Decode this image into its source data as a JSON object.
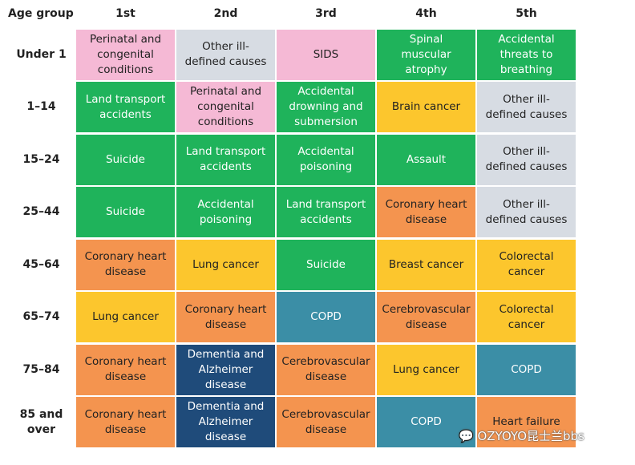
{
  "table": {
    "corner": "Age group",
    "columns": [
      "1st",
      "2nd",
      "3rd",
      "4th",
      "5th"
    ],
    "rows": [
      {
        "label": "Under 1",
        "cells": [
          {
            "text": "Perinatal and congenital conditions",
            "color": "#f5b9d5"
          },
          {
            "text": "Other ill-defined causes",
            "color": "#d7dce3"
          },
          {
            "text": "SIDS",
            "color": "#f5b9d5"
          },
          {
            "text": "Spinal muscular atrophy",
            "color": "#1fb35b"
          },
          {
            "text": "Accidental threats to breathing",
            "color": "#1fb35b"
          }
        ]
      },
      {
        "label": "1–14",
        "cells": [
          {
            "text": "Land transport accidents",
            "color": "#1fb35b"
          },
          {
            "text": "Perinatal and congenital conditions",
            "color": "#f5b9d5"
          },
          {
            "text": "Accidental drowning and submersion",
            "color": "#1fb35b"
          },
          {
            "text": "Brain cancer",
            "color": "#fcc62d"
          },
          {
            "text": "Other ill-defined causes",
            "color": "#d7dce3"
          }
        ]
      },
      {
        "label": "15–24",
        "cells": [
          {
            "text": "Suicide",
            "color": "#1fb35b"
          },
          {
            "text": "Land transport accidents",
            "color": "#1fb35b"
          },
          {
            "text": "Accidental poisoning",
            "color": "#1fb35b"
          },
          {
            "text": "Assault",
            "color": "#1fb35b"
          },
          {
            "text": "Other ill-defined causes",
            "color": "#d7dce3"
          }
        ]
      },
      {
        "label": "25–44",
        "cells": [
          {
            "text": "Suicide",
            "color": "#1fb35b"
          },
          {
            "text": "Accidental poisoning",
            "color": "#1fb35b"
          },
          {
            "text": "Land transport accidents",
            "color": "#1fb35b"
          },
          {
            "text": "Coronary heart disease",
            "color": "#f4944f"
          },
          {
            "text": "Other ill-defined causes",
            "color": "#d7dce3"
          }
        ]
      },
      {
        "label": "45–64",
        "cells": [
          {
            "text": "Coronary heart disease",
            "color": "#f4944f"
          },
          {
            "text": "Lung cancer",
            "color": "#fcc62d"
          },
          {
            "text": "Suicide",
            "color": "#1fb35b"
          },
          {
            "text": "Breast cancer",
            "color": "#fcc62d"
          },
          {
            "text": "Colorectal cancer",
            "color": "#fcc62d"
          }
        ]
      },
      {
        "label": "65–74",
        "cells": [
          {
            "text": "Lung cancer",
            "color": "#fcc62d"
          },
          {
            "text": "Coronary heart disease",
            "color": "#f4944f"
          },
          {
            "text": "COPD",
            "color": "#3b8ea6"
          },
          {
            "text": "Cerebrovascular disease",
            "color": "#f4944f"
          },
          {
            "text": "Colorectal cancer",
            "color": "#fcc62d"
          }
        ]
      },
      {
        "label": "75–84",
        "cells": [
          {
            "text": "Coronary heart disease",
            "color": "#f4944f"
          },
          {
            "text": "Dementia and Alzheimer disease",
            "color": "#1f4b7a"
          },
          {
            "text": "Cerebrovascular disease",
            "color": "#f4944f"
          },
          {
            "text": "Lung cancer",
            "color": "#fcc62d"
          },
          {
            "text": "COPD",
            "color": "#3b8ea6"
          }
        ]
      },
      {
        "label": "85 and over",
        "cells": [
          {
            "text": "Coronary heart disease",
            "color": "#f4944f"
          },
          {
            "text": "Dementia and Alzheimer disease",
            "color": "#1f4b7a"
          },
          {
            "text": "Cerebrovascular disease",
            "color": "#f4944f"
          },
          {
            "text": "COPD",
            "color": "#3b8ea6"
          },
          {
            "text": "Heart failure",
            "color": "#f4944f"
          }
        ]
      }
    ]
  },
  "watermark": "OZYOYO昆士兰bbs"
}
